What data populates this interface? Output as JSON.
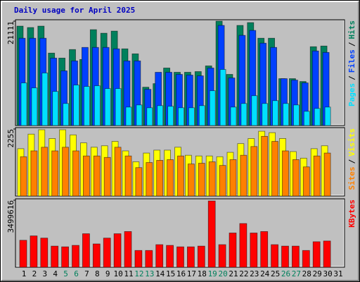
{
  "chart_data": [
    {
      "type": "bar",
      "title": "Daily usage for April 2025",
      "legend_separator": "/",
      "ylim": [
        0,
        21111
      ],
      "yticks": [
        21111
      ],
      "series": [
        {
          "name": "Hits",
          "color": "#00805c",
          "values": [
            20106,
            19820,
            20106,
            14650,
            13640,
            15370,
            13360,
            19390,
            18670,
            19100,
            15510,
            14500,
            7750,
            8470,
            11630,
            10770,
            10770,
            10910,
            12060,
            21111,
            10340,
            20250,
            20820,
            17660,
            17660,
            9480,
            9480,
            8900,
            15940,
            16080,
            0
          ]
        },
        {
          "name": "Files",
          "color": "#0040ff",
          "values": [
            17660,
            17660,
            17660,
            13640,
            11060,
            13070,
            15800,
            15800,
            15800,
            15510,
            13070,
            13070,
            7320,
            10770,
            10770,
            10340,
            10200,
            10050,
            11630,
            20250,
            9620,
            18240,
            19240,
            16660,
            15800,
            9480,
            9190,
            8620,
            15080,
            14790,
            0
          ]
        },
        {
          "name": "Pages",
          "color": "#00e0ff",
          "values": [
            8620,
            7610,
            10630,
            6890,
            4450,
            8190,
            7900,
            8040,
            7470,
            7470,
            3730,
            4160,
            3590,
            4020,
            3880,
            3590,
            3590,
            4020,
            7040,
            11340,
            3730,
            4450,
            6030,
            4450,
            5030,
            4450,
            4160,
            2870,
            3450,
            3730,
            0
          ]
        }
      ]
    },
    {
      "type": "bar",
      "legend_separator": "/",
      "ylim": [
        0,
        2255
      ],
      "yticks": [
        2255
      ],
      "series": [
        {
          "name": "Visits",
          "color": "#ffff00",
          "values": [
            1593,
            2083,
            2230,
            1936,
            2230,
            2058,
            1789,
            1642,
            1691,
            1838,
            1519,
            1152,
            1446,
            1544,
            1544,
            1642,
            1372,
            1348,
            1348,
            1323,
            1470,
            1764,
            1936,
            2181,
            2132,
            1936,
            1495,
            1274,
            1593,
            1691,
            0
          ]
        },
        {
          "name": "Sites",
          "color": "#ff8000",
          "values": [
            1323,
            1519,
            1642,
            1519,
            1642,
            1519,
            1348,
            1348,
            1299,
            1642,
            1348,
            956,
            1127,
            1201,
            1225,
            1348,
            1078,
            1103,
            1152,
            1029,
            1225,
            1372,
            1666,
            2009,
            1838,
            1519,
            1225,
            980,
            1348,
            1446,
            0
          ]
        }
      ]
    },
    {
      "type": "bar",
      "ylim": [
        0,
        3499616
      ],
      "yticks": [
        3499616
      ],
      "categories": [
        "1",
        "2",
        "3",
        "4",
        "5",
        "6",
        "7",
        "8",
        "9",
        "10",
        "11",
        "12",
        "13",
        "14",
        "15",
        "16",
        "17",
        "18",
        "19",
        "20",
        "21",
        "22",
        "23",
        "24",
        "25",
        "26",
        "27",
        "28",
        "29",
        "30",
        "31"
      ],
      "category_colors": [
        "#000000",
        "#000000",
        "#000000",
        "#000000",
        "#00805c",
        "#00805c",
        "#000000",
        "#000000",
        "#000000",
        "#000000",
        "#000000",
        "#00805c",
        "#00805c",
        "#000000",
        "#000000",
        "#000000",
        "#000000",
        "#000000",
        "#00805c",
        "#00805c",
        "#000000",
        "#000000",
        "#000000",
        "#000000",
        "#000000",
        "#00805c",
        "#00805c",
        "#000000",
        "#000000",
        "#000000",
        "#000000"
      ],
      "series": [
        {
          "name": "KBytes",
          "color": "#ff0000",
          "values": [
            1407440,
            1635680,
            1521560,
            1103130,
            1065090,
            1141170,
            1749790,
            1217250,
            1521560,
            1749790,
            1863910,
            874900,
            874900,
            1179210,
            1141170,
            1065090,
            1065090,
            1103130,
            3461550,
            1179210,
            1787830,
            2282340,
            1787830,
            1863910,
            1179210,
            1103130,
            1103130,
            874900,
            1331370,
            1369400,
            0
          ]
        }
      ]
    }
  ]
}
